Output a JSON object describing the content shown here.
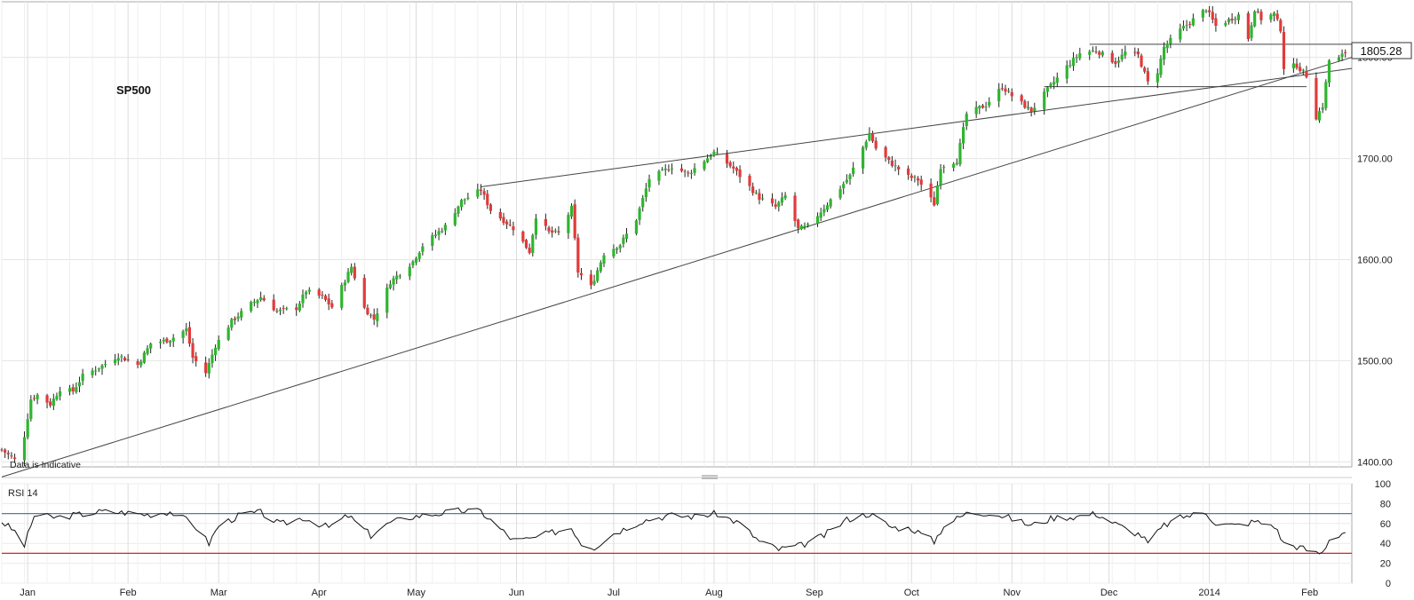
{
  "chart_data": [
    {
      "type": "candlestick",
      "title": "SP500",
      "note": "Data is Indicative",
      "last_price": "1805.28",
      "ylim": [
        1395,
        1855
      ],
      "yticks": [
        1400,
        1500,
        1600,
        1700,
        1800
      ],
      "ytick_labels": [
        "1400.00",
        "1500.00",
        "1600.00",
        "1700.00",
        "1800.00"
      ],
      "x_range": [
        "2012-12-24",
        "2014-02-14"
      ],
      "month_labels": [
        {
          "date": "2013-01-01",
          "label": "Jan"
        },
        {
          "date": "2013-02-01",
          "label": "Feb"
        },
        {
          "date": "2013-03-01",
          "label": "Mar"
        },
        {
          "date": "2013-04-01",
          "label": "Apr"
        },
        {
          "date": "2013-05-01",
          "label": "May"
        },
        {
          "date": "2013-06-01",
          "label": "Jun"
        },
        {
          "date": "2013-07-01",
          "label": "Jul"
        },
        {
          "date": "2013-08-01",
          "label": "Aug"
        },
        {
          "date": "2013-09-01",
          "label": "Sep"
        },
        {
          "date": "2013-10-01",
          "label": "Oct"
        },
        {
          "date": "2013-11-01",
          "label": "Nov"
        },
        {
          "date": "2013-12-01",
          "label": "Dec"
        },
        {
          "date": "2014-01-01",
          "label": "2014"
        },
        {
          "date": "2014-02-01",
          "label": "Feb"
        }
      ],
      "close_path": [
        [
          "2012-12-24",
          1412
        ],
        [
          "2012-12-28",
          1402
        ],
        [
          "2012-12-31",
          1426
        ],
        [
          "2013-01-02",
          1462
        ],
        [
          "2013-01-04",
          1466
        ],
        [
          "2013-01-08",
          1457
        ],
        [
          "2013-01-11",
          1472
        ],
        [
          "2013-01-15",
          1470
        ],
        [
          "2013-01-18",
          1485
        ],
        [
          "2013-01-24",
          1495
        ],
        [
          "2013-01-29",
          1505
        ],
        [
          "2013-02-04",
          1496
        ],
        [
          "2013-02-08",
          1517
        ],
        [
          "2013-02-14",
          1521
        ],
        [
          "2013-02-19",
          1531
        ],
        [
          "2013-02-21",
          1503
        ],
        [
          "2013-02-25",
          1488
        ],
        [
          "2013-02-28",
          1515
        ],
        [
          "2013-03-05",
          1539
        ],
        [
          "2013-03-11",
          1556
        ],
        [
          "2013-03-14",
          1563
        ],
        [
          "2013-03-19",
          1549
        ],
        [
          "2013-03-25",
          1552
        ],
        [
          "2013-03-28",
          1569
        ],
        [
          "2013-04-02",
          1563
        ],
        [
          "2013-04-05",
          1553
        ],
        [
          "2013-04-11",
          1593
        ],
        [
          "2013-04-15",
          1552
        ],
        [
          "2013-04-18",
          1541
        ],
        [
          "2013-04-23",
          1578
        ],
        [
          "2013-04-30",
          1598
        ],
        [
          "2013-05-03",
          1614
        ],
        [
          "2013-05-10",
          1633
        ],
        [
          "2013-05-15",
          1658
        ],
        [
          "2013-05-21",
          1669
        ],
        [
          "2013-05-24",
          1649
        ],
        [
          "2013-05-31",
          1631
        ],
        [
          "2013-06-05",
          1608
        ],
        [
          "2013-06-07",
          1643
        ],
        [
          "2013-06-11",
          1627
        ],
        [
          "2013-06-14",
          1626
        ],
        [
          "2013-06-18",
          1651
        ],
        [
          "2013-06-20",
          1588
        ],
        [
          "2013-06-24",
          1573
        ],
        [
          "2013-06-28",
          1606
        ],
        [
          "2013-07-03",
          1615
        ],
        [
          "2013-07-08",
          1640
        ],
        [
          "2013-07-12",
          1680
        ],
        [
          "2013-07-19",
          1692
        ],
        [
          "2013-07-24",
          1685
        ],
        [
          "2013-08-01",
          1706
        ],
        [
          "2013-08-07",
          1690
        ],
        [
          "2013-08-15",
          1661
        ],
        [
          "2013-08-20",
          1652
        ],
        [
          "2013-08-23",
          1663
        ],
        [
          "2013-08-27",
          1630
        ],
        [
          "2013-08-30",
          1633
        ],
        [
          "2013-09-05",
          1655
        ],
        [
          "2013-09-12",
          1683
        ],
        [
          "2013-09-18",
          1725
        ],
        [
          "2013-09-20",
          1710
        ],
        [
          "2013-09-24",
          1697
        ],
        [
          "2013-09-30",
          1682
        ],
        [
          "2013-10-03",
          1679
        ],
        [
          "2013-10-08",
          1655
        ],
        [
          "2013-10-10",
          1692
        ],
        [
          "2013-10-15",
          1698
        ],
        [
          "2013-10-18",
          1744
        ],
        [
          "2013-10-24",
          1753
        ],
        [
          "2013-10-29",
          1771
        ],
        [
          "2013-11-01",
          1762
        ],
        [
          "2013-11-07",
          1747
        ],
        [
          "2013-11-12",
          1768
        ],
        [
          "2013-11-18",
          1791
        ],
        [
          "2013-11-22",
          1804
        ],
        [
          "2013-11-27",
          1807
        ],
        [
          "2013-12-03",
          1795
        ],
        [
          "2013-12-06",
          1805
        ],
        [
          "2013-12-10",
          1802
        ],
        [
          "2013-12-13",
          1775
        ],
        [
          "2013-12-16",
          1786
        ],
        [
          "2013-12-18",
          1810
        ],
        [
          "2013-12-23",
          1827
        ],
        [
          "2013-12-31",
          1848
        ],
        [
          "2014-01-03",
          1831
        ],
        [
          "2014-01-07",
          1837
        ],
        [
          "2014-01-10",
          1842
        ],
        [
          "2014-01-13",
          1819
        ],
        [
          "2014-01-15",
          1848
        ],
        [
          "2014-01-17",
          1838
        ],
        [
          "2014-01-21",
          1843
        ],
        [
          "2014-01-23",
          1828
        ],
        [
          "2014-01-24",
          1790
        ],
        [
          "2014-01-28",
          1792
        ],
        [
          "2014-01-31",
          1782
        ],
        [
          "2014-02-03",
          1741
        ],
        [
          "2014-02-05",
          1752
        ],
        [
          "2014-02-07",
          1797
        ],
        [
          "2014-02-10",
          1799
        ],
        [
          "2014-02-12",
          1805
        ]
      ],
      "support_resistance_lines": [
        {
          "from": [
            "2013-05-21",
            1672
          ],
          "to": [
            "2014-02-14",
            1789
          ]
        },
        {
          "from": [
            "2012-12-24",
            1385
          ],
          "to": [
            "2014-02-27",
            1813
          ]
        },
        {
          "from": [
            "2013-11-11",
            1771
          ],
          "to": [
            "2014-01-31",
            1771
          ]
        },
        {
          "from": [
            "2013-11-25",
            1813
          ],
          "to": [
            "2014-02-14",
            1813
          ]
        }
      ]
    },
    {
      "type": "line",
      "title": "RSI 14",
      "ylim": [
        0,
        100
      ],
      "yticks": [
        0,
        20,
        40,
        60,
        80,
        100
      ],
      "levels": [
        {
          "value": 70,
          "color": "#4a7fa8"
        },
        {
          "value": 30,
          "color": "#e02020"
        }
      ],
      "series": [
        {
          "points": [
            [
              "2012-12-24",
              62
            ],
            [
              "2012-12-28",
              52
            ],
            [
              "2012-12-31",
              38
            ],
            [
              "2013-01-03",
              68
            ],
            [
              "2013-01-10",
              66
            ],
            [
              "2013-01-17",
              69
            ],
            [
              "2013-01-24",
              72
            ],
            [
              "2013-01-31",
              71
            ],
            [
              "2013-02-07",
              69
            ],
            [
              "2013-02-14",
              72
            ],
            [
              "2013-02-21",
              60
            ],
            [
              "2013-02-26",
              40
            ],
            [
              "2013-03-01",
              58
            ],
            [
              "2013-03-08",
              69
            ],
            [
              "2013-03-14",
              71
            ],
            [
              "2013-03-20",
              59
            ],
            [
              "2013-03-27",
              66
            ],
            [
              "2013-04-04",
              56
            ],
            [
              "2013-04-10",
              68
            ],
            [
              "2013-04-17",
              48
            ],
            [
              "2013-04-23",
              61
            ],
            [
              "2013-04-30",
              67
            ],
            [
              "2013-05-08",
              70
            ],
            [
              "2013-05-15",
              73
            ],
            [
              "2013-05-21",
              72
            ],
            [
              "2013-05-31",
              43
            ],
            [
              "2013-06-05",
              44
            ],
            [
              "2013-06-11",
              50
            ],
            [
              "2013-06-18",
              56
            ],
            [
              "2013-06-21",
              40
            ],
            [
              "2013-06-25",
              36
            ],
            [
              "2013-07-01",
              50
            ],
            [
              "2013-07-10",
              63
            ],
            [
              "2013-07-18",
              68
            ],
            [
              "2013-07-26",
              67
            ],
            [
              "2013-08-02",
              70
            ],
            [
              "2013-08-09",
              60
            ],
            [
              "2013-08-15",
              42
            ],
            [
              "2013-08-21",
              34
            ],
            [
              "2013-08-28",
              38
            ],
            [
              "2013-09-04",
              48
            ],
            [
              "2013-09-11",
              64
            ],
            [
              "2013-09-18",
              70
            ],
            [
              "2013-09-25",
              56
            ],
            [
              "2013-10-01",
              55
            ],
            [
              "2013-10-08",
              42
            ],
            [
              "2013-10-11",
              58
            ],
            [
              "2013-10-18",
              70
            ],
            [
              "2013-10-25",
              71
            ],
            [
              "2013-10-30",
              67
            ],
            [
              "2013-11-07",
              58
            ],
            [
              "2013-11-14",
              66
            ],
            [
              "2013-11-21",
              67
            ],
            [
              "2013-11-27",
              70
            ],
            [
              "2013-12-04",
              58
            ],
            [
              "2013-12-11",
              48
            ],
            [
              "2013-12-13",
              40
            ],
            [
              "2013-12-18",
              58
            ],
            [
              "2013-12-24",
              67
            ],
            [
              "2013-12-31",
              71
            ],
            [
              "2014-01-03",
              60
            ],
            [
              "2014-01-09",
              58
            ],
            [
              "2014-01-15",
              62
            ],
            [
              "2014-01-21",
              58
            ],
            [
              "2014-01-24",
              40
            ],
            [
              "2014-01-29",
              36
            ],
            [
              "2014-02-03",
              30
            ],
            [
              "2014-02-05",
              31
            ],
            [
              "2014-02-07",
              44
            ],
            [
              "2014-02-12",
              52
            ]
          ]
        }
      ]
    }
  ]
}
